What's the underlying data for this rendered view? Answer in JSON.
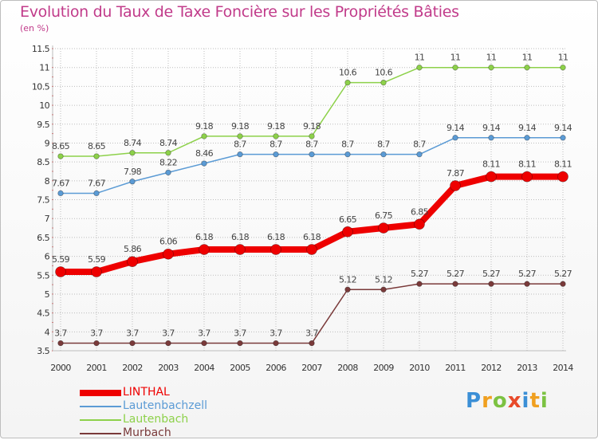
{
  "header": {
    "title": "Evolution du Taux de Taxe Foncière sur les Propriétés Bâties",
    "subtitle": "(en %)"
  },
  "colors": {
    "title": "#c13b8a",
    "grid": "#bdbdbd",
    "axis_tick": "#d93a3a"
  },
  "chart_data": {
    "type": "line",
    "title": "Evolution du Taux de Taxe Foncière sur les Propriétés Bâties",
    "ylabel": "(en %)",
    "xlabel": "",
    "x": [
      "2000",
      "2001",
      "2002",
      "2003",
      "2004",
      "2005",
      "2006",
      "2007",
      "2008",
      "2009",
      "2010",
      "2011",
      "2012",
      "2013",
      "2014"
    ],
    "ylim": [
      3.5,
      11.5
    ],
    "yticks": [
      "3.5",
      "4",
      "4.5",
      "5",
      "5.5",
      "6",
      "6.5",
      "7",
      "7.5",
      "8",
      "8.5",
      "9",
      "9.5",
      "10",
      "10.5",
      "11",
      "11.5"
    ],
    "grid": true,
    "legend_position": "bottom-left",
    "series": [
      {
        "name": "Lautenbach",
        "color": "#8dd14a",
        "values": [
          8.65,
          8.65,
          8.74,
          8.74,
          9.18,
          9.18,
          9.18,
          9.18,
          10.6,
          10.6,
          11,
          11,
          11,
          11,
          11
        ],
        "labels": [
          "8.65",
          "8.65",
          "8.74",
          "8.74",
          "9.18",
          "9.18",
          "9.18",
          "9.18",
          "10.6",
          "10.6",
          "11",
          "11",
          "11",
          "11",
          "11"
        ]
      },
      {
        "name": "Lautenbachzell",
        "color": "#5b9bd5",
        "values": [
          7.67,
          7.67,
          7.98,
          8.22,
          8.46,
          8.7,
          8.7,
          8.7,
          8.7,
          8.7,
          8.7,
          9.14,
          9.14,
          9.14,
          9.14
        ],
        "labels": [
          "7.67",
          "7.67",
          "7.98",
          "8.22",
          "8.46",
          "8.7",
          "8.7",
          "8.7",
          "8.7",
          "8.7",
          "8.7",
          "9.14",
          "9.14",
          "9.14",
          "9.14"
        ]
      },
      {
        "name": "Murbach",
        "color": "#7a3a3a",
        "values": [
          3.7,
          3.7,
          3.7,
          3.7,
          3.7,
          3.7,
          3.7,
          3.7,
          5.12,
          5.12,
          5.27,
          5.27,
          5.27,
          5.27,
          5.27
        ],
        "labels": [
          "3.7",
          "3.7",
          "3.7",
          "3.7",
          "3.7",
          "3.7",
          "3.7",
          "3.7",
          "5.12",
          "5.12",
          "5.27",
          "5.27",
          "5.27",
          "5.27",
          "5.27"
        ]
      },
      {
        "name": "LINTHAL",
        "color": "#ee0000",
        "values": [
          5.59,
          5.59,
          5.86,
          6.06,
          6.18,
          6.18,
          6.18,
          6.18,
          6.65,
          6.75,
          6.85,
          7.87,
          8.11,
          8.11,
          8.11
        ],
        "labels": [
          "5.59",
          "5.59",
          "5.86",
          "6.06",
          "6.18",
          "6.18",
          "6.18",
          "6.18",
          "6.65",
          "6.75",
          "6.85",
          "7.87",
          "8.11",
          "8.11",
          "8.11"
        ]
      }
    ]
  },
  "legend": {
    "items": [
      {
        "label": "LINTHAL",
        "color": "#ee0000"
      },
      {
        "label": "Lautenbachzell",
        "color": "#5b9bd5"
      },
      {
        "label": "Lautenbach",
        "color": "#8dd14a"
      },
      {
        "label": "Murbach",
        "color": "#7a3a3a"
      }
    ]
  },
  "logo": {
    "letters": [
      "P",
      "r",
      "o",
      "x",
      "i",
      "t",
      "i"
    ],
    "colors": [
      "#3b8fd6",
      "#f0a020",
      "#7cc242",
      "#e84a2a",
      "#3b8fd6",
      "#f0a020",
      "#7cc242"
    ]
  }
}
